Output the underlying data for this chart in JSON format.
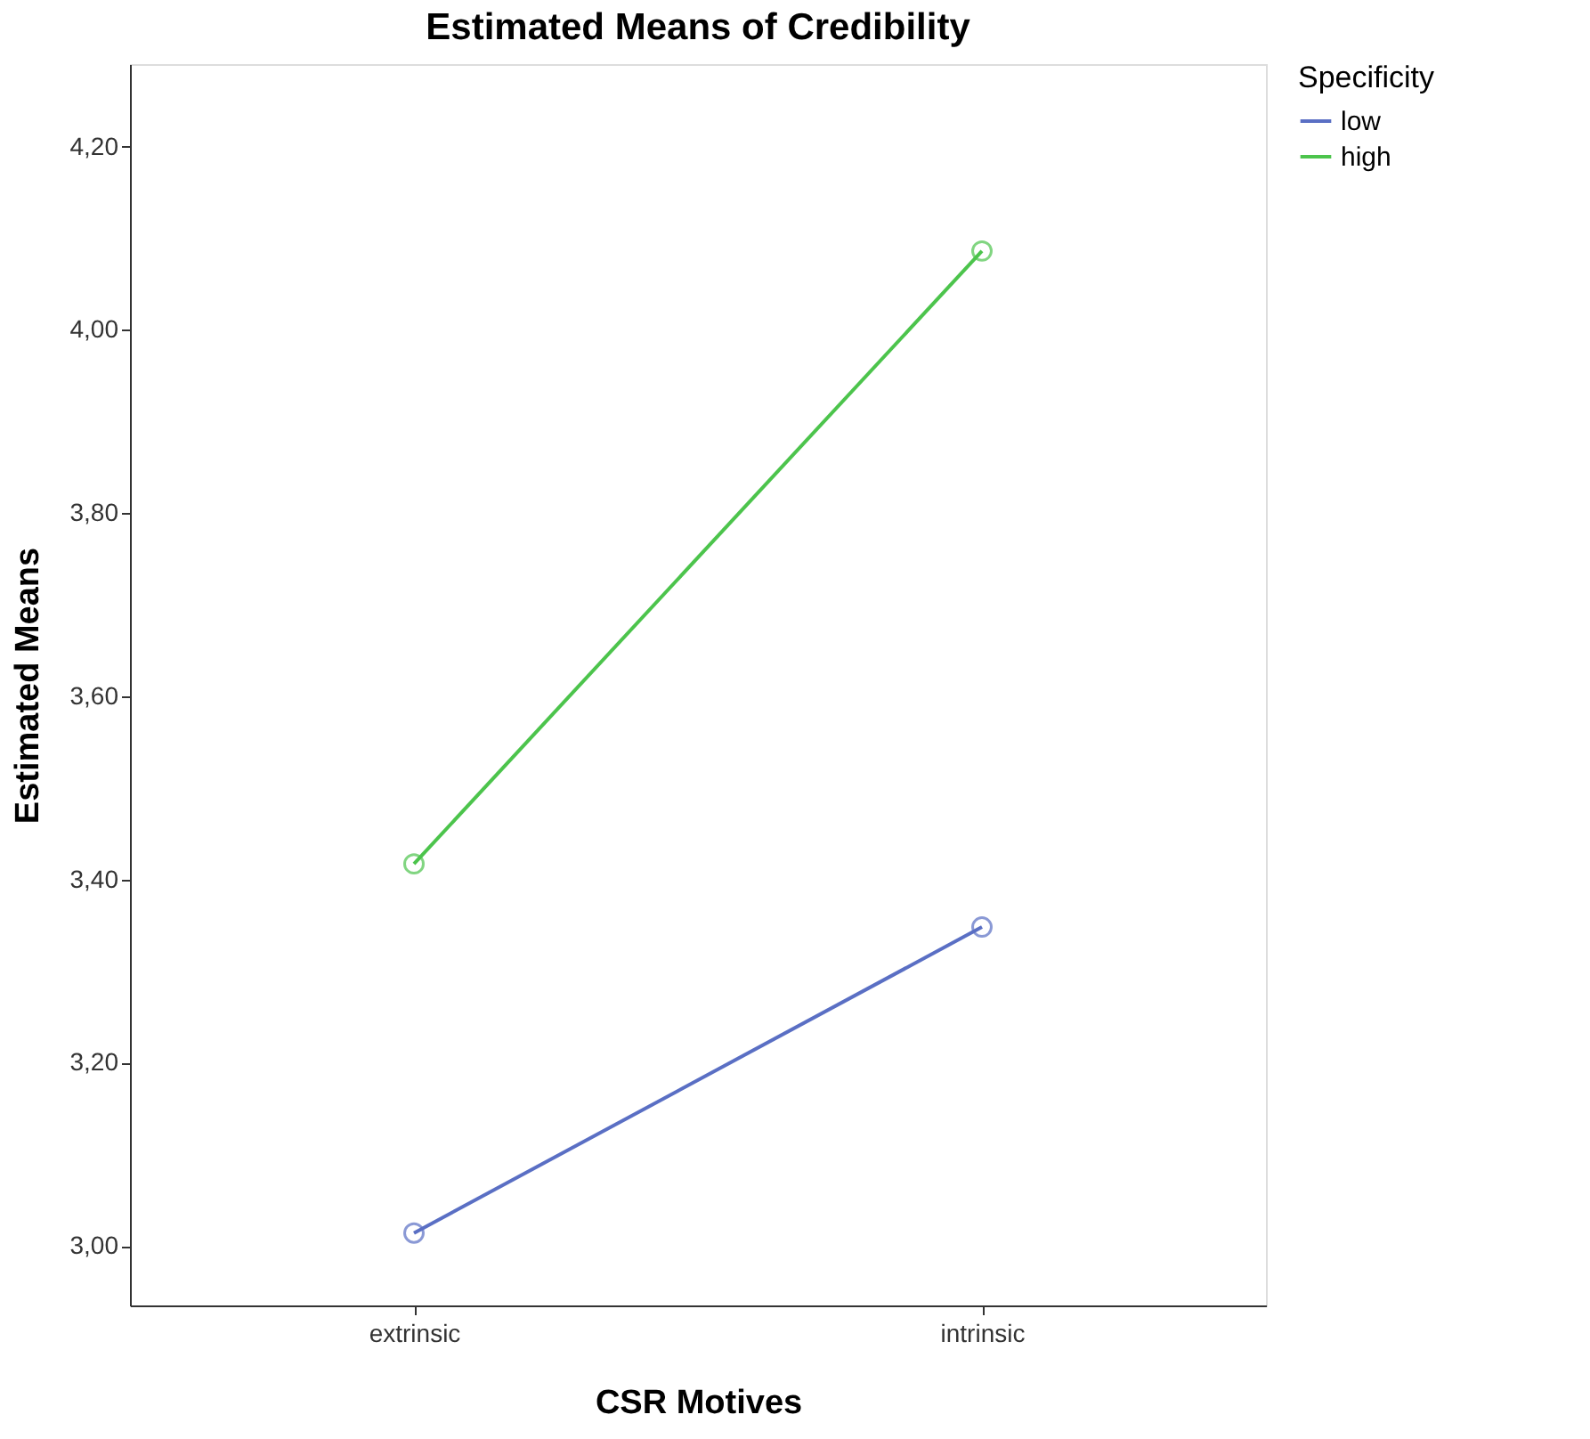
{
  "chart_data": {
    "type": "line",
    "title": "Estimated Means of Credibility",
    "xlabel": "CSR Motives",
    "ylabel": "Estimated Means",
    "legend_title": "Specificity",
    "categories": [
      "extrinsic",
      "intrinsic"
    ],
    "series": [
      {
        "name": "low",
        "color": "#5a6fc4",
        "values": [
          3.014,
          3.348
        ]
      },
      {
        "name": "high",
        "color": "#4cc44c",
        "values": [
          3.417,
          4.086
        ]
      }
    ],
    "ylim": [
      2.935,
      4.29
    ],
    "yticks": [
      {
        "value": 3.0,
        "label": "3,00"
      },
      {
        "value": 3.2,
        "label": "3,20"
      },
      {
        "value": 3.4,
        "label": "3,40"
      },
      {
        "value": 3.6,
        "label": "3,60"
      },
      {
        "value": 3.8,
        "label": "3,80"
      },
      {
        "value": 4.0,
        "label": "4,00"
      },
      {
        "value": 4.2,
        "label": "4,20"
      }
    ],
    "marker": "circle",
    "line_style": "solid",
    "grid": false,
    "legend": "top right"
  }
}
